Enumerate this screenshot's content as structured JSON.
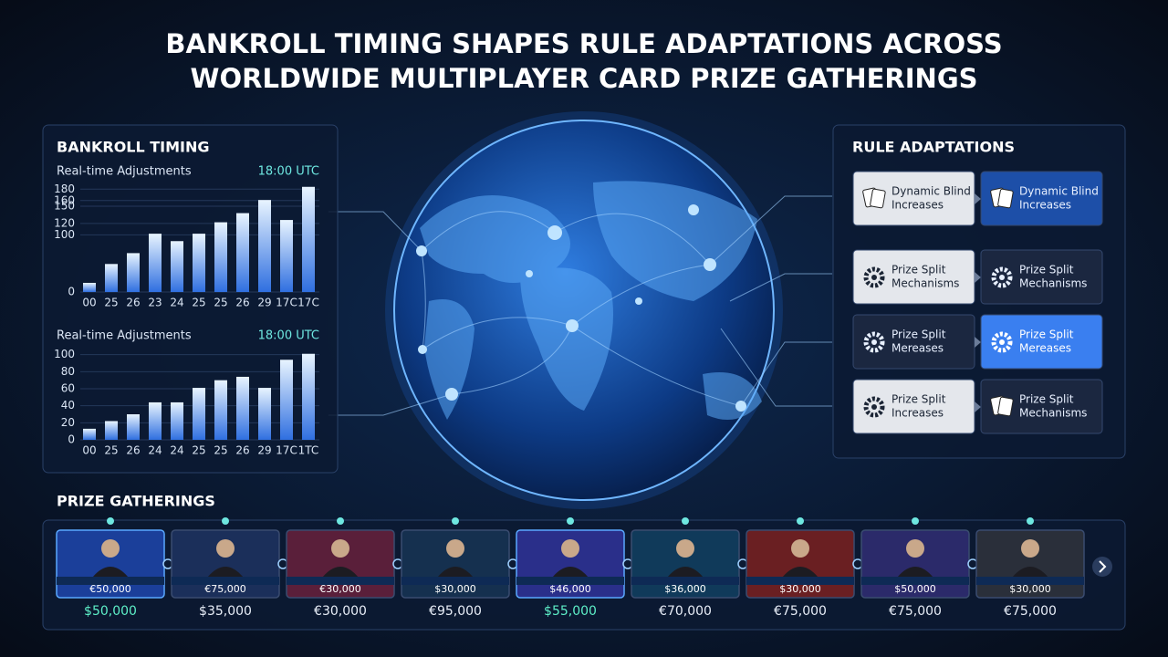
{
  "title": [
    "BANKROLL TIMING SHAPES RULE ADAPTATIONS ACROSS",
    "WORLDWIDE MULTIPLAYER CARD PRIZE GATHERINGS"
  ],
  "left_panel": {
    "title": "BANKROLL TIMING"
  },
  "chart_data": [
    {
      "type": "bar",
      "title": "Real-time Adjustments",
      "annotation": "18:00 UTC",
      "categories": [
        "00",
        "25",
        "26",
        "23",
        "24",
        "25",
        "25",
        "26",
        "29",
        "17C",
        "17C"
      ],
      "values": [
        16,
        49,
        68,
        102,
        89,
        102,
        122,
        138,
        161,
        126,
        184
      ],
      "ylim": [
        0,
        190
      ],
      "yticks": [
        0,
        100,
        120,
        150,
        160,
        180
      ]
    },
    {
      "type": "bar",
      "title": "Real-time Adjustments",
      "annotation": "18:00 UTC",
      "categories": [
        "00",
        "25",
        "26",
        "24",
        "24",
        "25",
        "25",
        "26",
        "29",
        "17C",
        "1TC"
      ],
      "values": [
        13,
        22,
        30,
        44,
        44,
        61,
        70,
        74,
        61,
        94,
        101
      ],
      "ylim": [
        0,
        105
      ],
      "yticks": [
        0,
        20,
        40,
        60,
        80,
        100
      ]
    }
  ],
  "right_panel": {
    "title": "RULE ADAPTATIONS",
    "rows": [
      [
        {
          "lines": [
            "Dynamic Blind",
            "Increases"
          ]
        },
        {
          "lines": [
            "Dynamic Blind",
            "Increases"
          ]
        }
      ],
      [
        {
          "lines": [
            "Prize Split",
            "Mechanisms"
          ]
        },
        {
          "lines": [
            "Prize Split",
            "Mechanisms"
          ]
        }
      ],
      [
        {
          "lines": [
            "Prize Split",
            "Mereases"
          ]
        },
        {
          "lines": [
            "Prize Split",
            "Mereases"
          ]
        }
      ],
      [
        {
          "lines": [
            "Prize Split",
            "Increases"
          ]
        },
        {
          "lines": [
            "Prize Split",
            "Mechanisms"
          ]
        }
      ]
    ]
  },
  "prize_gatherings": {
    "title": "PRIZE GATHERINGS",
    "items": [
      {
        "badge": "€50,000",
        "amount": "$50,000"
      },
      {
        "badge": "€75,000",
        "amount": "$35,000"
      },
      {
        "badge": "€30,000",
        "amount": "€30,000"
      },
      {
        "badge": "$30,000",
        "amount": "€95,000"
      },
      {
        "badge": "$46,000",
        "amount": "$55,000"
      },
      {
        "badge": "$36,000",
        "amount": "€70,000"
      },
      {
        "badge": "$30,000",
        "amount": "€75,000"
      },
      {
        "badge": "$50,000",
        "amount": "€75,000"
      },
      {
        "badge": "$30,000",
        "amount": "€75,000"
      }
    ]
  }
}
